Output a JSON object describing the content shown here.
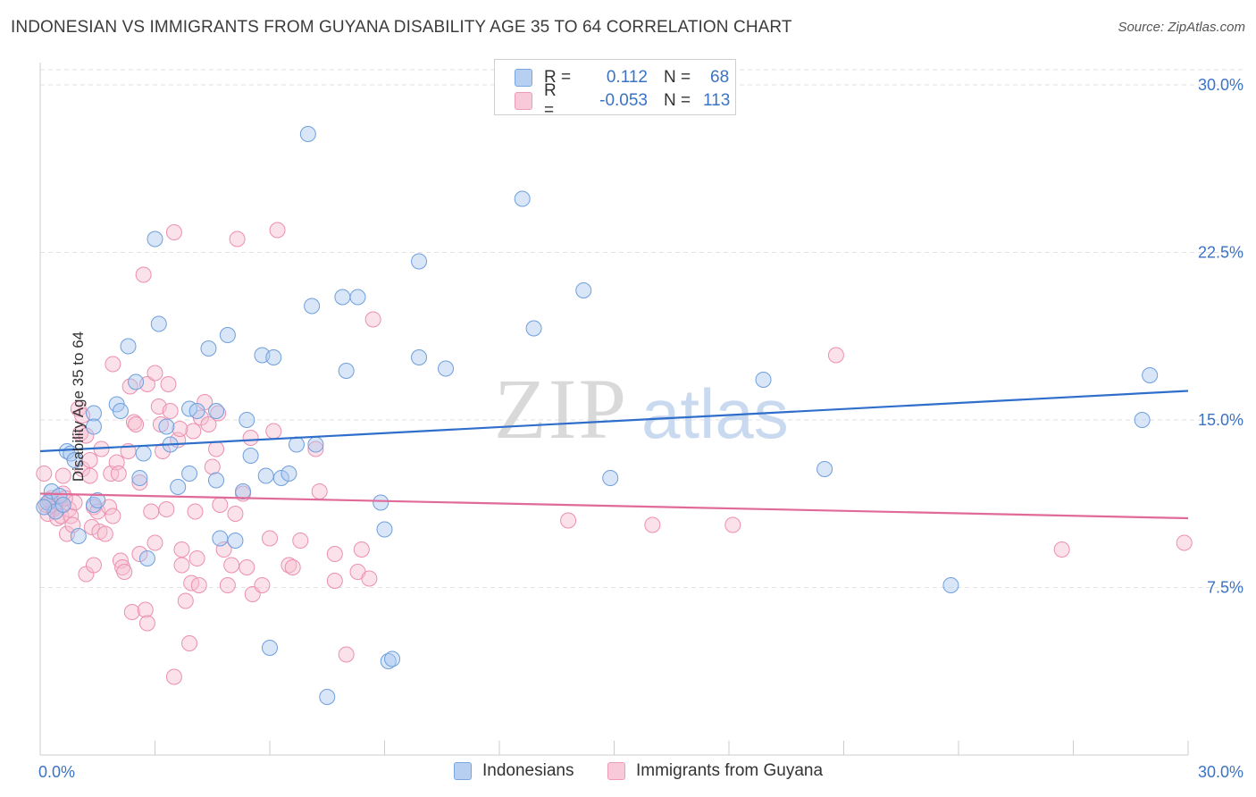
{
  "title": "INDONESIAN VS IMMIGRANTS FROM GUYANA DISABILITY AGE 35 TO 64 CORRELATION CHART",
  "source": "Source: ZipAtlas.com",
  "watermark": {
    "zip": "ZIP",
    "atlas": "atlas"
  },
  "legend": {
    "rows": [
      {
        "r_label": "R =",
        "r_value": "0.112",
        "n_label": "N =",
        "n_value": "68"
      },
      {
        "r_label": "R =",
        "r_value": "-0.053",
        "n_label": "N =",
        "n_value": "113"
      }
    ]
  },
  "bottom_legend": [
    "Indonesians",
    "Immigrants from Guyana"
  ],
  "colors": {
    "blue_fill": "#a9c8f0",
    "blue_stroke": "#6f9fdc",
    "blue_line": "#2f6fcb",
    "pink_fill": "#f6bfd1",
    "pink_stroke": "#ec8fb0",
    "pink_line": "#e06a98",
    "tick_text": "#3b73c4",
    "grid": "#e2e2e2"
  },
  "chart_data": {
    "type": "scatter",
    "title": "INDONESIAN VS IMMIGRANTS FROM GUYANA DISABILITY AGE 35 TO 64 CORRELATION CHART",
    "xlabel": "",
    "ylabel": "Disability Age 35 to 64",
    "xlim": [
      0,
      30
    ],
    "ylim": [
      0,
      31
    ],
    "x_tick_labels": [
      "0.0%",
      "30.0%"
    ],
    "y_ticks": [
      7.5,
      15.0,
      22.5,
      30.0
    ],
    "y_tick_labels": [
      "7.5%",
      "15.0%",
      "22.5%",
      "30.0%"
    ],
    "grid": true,
    "legend_position": "top-center",
    "series": [
      {
        "name": "Indonesians",
        "color": "#a9c8f0",
        "trend": {
          "x": [
            0,
            30
          ],
          "y": [
            13.6,
            16.3
          ]
        },
        "points": [
          [
            0.2,
            11.3
          ],
          [
            0.3,
            11.8
          ],
          [
            0.4,
            10.9
          ],
          [
            0.5,
            11.6
          ],
          [
            0.6,
            11.2
          ],
          [
            0.7,
            13.6
          ],
          [
            0.8,
            13.5
          ],
          [
            0.9,
            13.2
          ],
          [
            1.0,
            9.8
          ],
          [
            1.4,
            11.2
          ],
          [
            1.4,
            15.3
          ],
          [
            1.4,
            14.7
          ],
          [
            1.5,
            11.4
          ],
          [
            2.0,
            15.7
          ],
          [
            2.3,
            18.3
          ],
          [
            2.5,
            16.7
          ],
          [
            2.6,
            12.4
          ],
          [
            2.7,
            13.5
          ],
          [
            2.8,
            8.8
          ],
          [
            3.0,
            23.1
          ],
          [
            3.1,
            19.3
          ],
          [
            3.3,
            14.7
          ],
          [
            3.4,
            13.9
          ],
          [
            3.6,
            12.0
          ],
          [
            3.9,
            12.6
          ],
          [
            3.9,
            15.5
          ],
          [
            4.1,
            15.4
          ],
          [
            4.4,
            18.2
          ],
          [
            4.6,
            15.4
          ],
          [
            4.6,
            12.3
          ],
          [
            4.7,
            9.7
          ],
          [
            4.9,
            18.8
          ],
          [
            5.1,
            9.6
          ],
          [
            5.3,
            11.8
          ],
          [
            5.4,
            15.0
          ],
          [
            5.5,
            13.4
          ],
          [
            5.8,
            17.9
          ],
          [
            5.9,
            12.5
          ],
          [
            6.0,
            4.8
          ],
          [
            6.1,
            17.8
          ],
          [
            6.3,
            12.4
          ],
          [
            6.5,
            12.6
          ],
          [
            6.7,
            13.9
          ],
          [
            7.0,
            27.8
          ],
          [
            7.1,
            20.1
          ],
          [
            7.2,
            13.9
          ],
          [
            7.5,
            2.6
          ],
          [
            7.9,
            20.5
          ],
          [
            8.0,
            17.2
          ],
          [
            8.3,
            20.5
          ],
          [
            8.9,
            11.3
          ],
          [
            9.0,
            10.1
          ],
          [
            9.1,
            4.2
          ],
          [
            9.2,
            4.3
          ],
          [
            9.9,
            17.8
          ],
          [
            9.9,
            22.1
          ],
          [
            10.6,
            17.3
          ],
          [
            12.6,
            24.9
          ],
          [
            12.9,
            19.1
          ],
          [
            14.2,
            20.8
          ],
          [
            14.9,
            12.4
          ],
          [
            18.9,
            16.8
          ],
          [
            20.5,
            12.8
          ],
          [
            23.8,
            7.6
          ],
          [
            28.8,
            15.0
          ],
          [
            29.0,
            17.0
          ],
          [
            0.1,
            11.1
          ],
          [
            2.1,
            15.4
          ]
        ]
      },
      {
        "name": "Immigrants from Guyana",
        "color": "#f6bfd1",
        "trend": {
          "x": [
            0,
            30
          ],
          "y": [
            11.7,
            10.6
          ]
        },
        "points": [
          [
            0.1,
            12.6
          ],
          [
            0.15,
            11.2
          ],
          [
            0.2,
            10.8
          ],
          [
            0.3,
            11.5
          ],
          [
            0.35,
            11.0
          ],
          [
            0.4,
            11.1
          ],
          [
            0.45,
            10.6
          ],
          [
            0.5,
            11.3
          ],
          [
            0.55,
            10.7
          ],
          [
            0.6,
            11.7
          ],
          [
            0.6,
            12.5
          ],
          [
            0.7,
            9.9
          ],
          [
            0.75,
            11.0
          ],
          [
            0.8,
            10.7
          ],
          [
            0.85,
            10.3
          ],
          [
            0.9,
            11.3
          ],
          [
            1.0,
            15.5
          ],
          [
            1.05,
            14.4
          ],
          [
            1.1,
            15.2
          ],
          [
            1.1,
            12.8
          ],
          [
            1.2,
            14.3
          ],
          [
            1.2,
            8.1
          ],
          [
            1.3,
            13.2
          ],
          [
            1.3,
            12.5
          ],
          [
            1.35,
            10.2
          ],
          [
            1.4,
            11.1
          ],
          [
            1.4,
            8.5
          ],
          [
            1.5,
            10.9
          ],
          [
            1.55,
            10.0
          ],
          [
            1.6,
            13.7
          ],
          [
            1.7,
            9.9
          ],
          [
            1.8,
            11.1
          ],
          [
            1.85,
            12.6
          ],
          [
            1.9,
            10.7
          ],
          [
            1.9,
            17.5
          ],
          [
            2.0,
            13.1
          ],
          [
            2.05,
            12.6
          ],
          [
            2.1,
            8.7
          ],
          [
            2.15,
            8.4
          ],
          [
            2.2,
            8.2
          ],
          [
            2.3,
            13.6
          ],
          [
            2.35,
            16.5
          ],
          [
            2.4,
            6.4
          ],
          [
            2.45,
            14.9
          ],
          [
            2.5,
            14.8
          ],
          [
            2.6,
            12.2
          ],
          [
            2.6,
            9.0
          ],
          [
            2.7,
            21.5
          ],
          [
            2.75,
            6.5
          ],
          [
            2.8,
            5.9
          ],
          [
            2.8,
            16.6
          ],
          [
            2.9,
            10.9
          ],
          [
            3.0,
            9.5
          ],
          [
            3.0,
            17.1
          ],
          [
            3.1,
            15.6
          ],
          [
            3.15,
            14.8
          ],
          [
            3.2,
            13.6
          ],
          [
            3.3,
            11.0
          ],
          [
            3.35,
            16.6
          ],
          [
            3.4,
            15.4
          ],
          [
            3.5,
            23.4
          ],
          [
            3.5,
            3.5
          ],
          [
            3.6,
            14.1
          ],
          [
            3.7,
            9.2
          ],
          [
            3.7,
            8.5
          ],
          [
            3.8,
            6.9
          ],
          [
            3.9,
            5.0
          ],
          [
            3.95,
            7.7
          ],
          [
            4.0,
            14.5
          ],
          [
            4.05,
            10.9
          ],
          [
            4.1,
            8.8
          ],
          [
            4.15,
            7.6
          ],
          [
            4.2,
            15.1
          ],
          [
            4.3,
            15.8
          ],
          [
            4.4,
            14.8
          ],
          [
            4.5,
            12.9
          ],
          [
            4.6,
            13.7
          ],
          [
            4.65,
            15.3
          ],
          [
            4.7,
            11.2
          ],
          [
            4.8,
            9.2
          ],
          [
            4.9,
            7.6
          ],
          [
            5.0,
            8.5
          ],
          [
            5.1,
            10.8
          ],
          [
            5.15,
            23.1
          ],
          [
            5.3,
            11.7
          ],
          [
            5.4,
            8.4
          ],
          [
            5.5,
            14.2
          ],
          [
            5.55,
            7.2
          ],
          [
            5.8,
            7.6
          ],
          [
            6.0,
            9.7
          ],
          [
            6.1,
            14.5
          ],
          [
            6.2,
            23.5
          ],
          [
            6.5,
            8.5
          ],
          [
            6.6,
            8.4
          ],
          [
            6.8,
            9.6
          ],
          [
            7.2,
            13.7
          ],
          [
            7.3,
            11.8
          ],
          [
            7.7,
            9.0
          ],
          [
            7.7,
            7.8
          ],
          [
            8.0,
            4.5
          ],
          [
            8.3,
            8.2
          ],
          [
            8.4,
            9.2
          ],
          [
            8.6,
            7.9
          ],
          [
            8.7,
            19.5
          ],
          [
            13.8,
            10.5
          ],
          [
            16.0,
            10.3
          ],
          [
            18.1,
            10.3
          ],
          [
            20.8,
            17.9
          ],
          [
            26.7,
            9.2
          ],
          [
            29.9,
            9.5
          ],
          [
            0.25,
            11.4
          ],
          [
            0.65,
            11.5
          ],
          [
            3.65,
            14.6
          ]
        ]
      }
    ]
  }
}
